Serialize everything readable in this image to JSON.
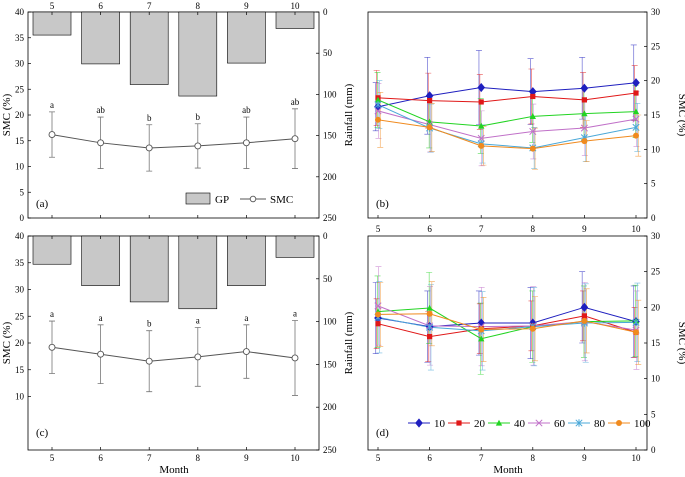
{
  "figure": {
    "xlabel": "Month",
    "left_ylabel": "SMC (%)",
    "mid_ylabel": "Rainfall (mm)",
    "right_ylabel": "SMC (%)"
  },
  "chart_data": [
    {
      "panel": "(a)",
      "type": "bar+line",
      "months": [
        "5",
        "6",
        "7",
        "8",
        "9",
        "10"
      ],
      "bars": {
        "name": "GP",
        "values": [
          28,
          63,
          88,
          102,
          62,
          20
        ],
        "axis": "Rainfall (mm)",
        "ylim_inverted": [
          0,
          250
        ],
        "yticks": [
          0,
          50,
          100,
          150,
          200,
          250
        ],
        "color": "#c8c8c8"
      },
      "line": {
        "name": "SMC",
        "values": [
          16.2,
          14.6,
          13.6,
          14.0,
          14.6,
          15.4
        ],
        "err": [
          4.4,
          5.0,
          4.5,
          4.3,
          5.0,
          5.8
        ],
        "letters": [
          "a",
          "ab",
          "b",
          "b",
          "ab",
          "ab"
        ],
        "axis": "SMC (%)",
        "ylim": [
          0,
          40
        ],
        "yticks": [
          0,
          5,
          10,
          15,
          20,
          25,
          30,
          35,
          40
        ]
      },
      "legend": [
        "GP",
        "SMC"
      ]
    },
    {
      "panel": "(c)",
      "type": "bar+line",
      "months": [
        "5",
        "6",
        "7",
        "8",
        "9",
        "10"
      ],
      "bars": {
        "name": "GP",
        "values": [
          33,
          58,
          77,
          85,
          58,
          25
        ],
        "axis": "Rainfall (mm)",
        "ylim_inverted": [
          0,
          250
        ],
        "yticks": [
          0,
          50,
          100,
          150,
          200,
          250
        ],
        "color": "#c8c8c8"
      },
      "line": {
        "name": "SMC",
        "values": [
          19.2,
          17.9,
          16.6,
          17.4,
          18.4,
          17.2
        ],
        "err": [
          4.9,
          5.5,
          5.7,
          5.5,
          5.0,
          7.0
        ],
        "letters": [
          "a",
          "a",
          "b",
          "a",
          "a",
          "a"
        ],
        "axis": "SMC (%)",
        "ylim": [
          0,
          40
        ],
        "yticks": [
          10,
          15,
          20,
          25,
          30,
          35,
          40
        ]
      }
    },
    {
      "panel": "(b)",
      "type": "line",
      "months": [
        "5",
        "6",
        "7",
        "8",
        "9",
        "10"
      ],
      "ylabel": "SMC (%)",
      "ylim": [
        0,
        30
      ],
      "yticks": [
        0,
        5,
        10,
        15,
        20,
        25,
        30
      ],
      "series": [
        {
          "name": "10",
          "color": "#1f1fbf",
          "marker": "diamond",
          "values": [
            16.2,
            17.8,
            19.0,
            18.4,
            18.9,
            19.7
          ],
          "err": [
            3.5,
            5.6,
            5.4,
            4.8,
            4.5,
            5.5
          ]
        },
        {
          "name": "20",
          "color": "#e01818",
          "marker": "square",
          "values": [
            17.5,
            17.1,
            16.9,
            17.7,
            17.2,
            18.2
          ],
          "err": [
            4.0,
            4.0,
            4.0,
            4.0,
            4.0,
            4.0
          ]
        },
        {
          "name": "40",
          "color": "#22d422",
          "marker": "triangle",
          "values": [
            17.2,
            14.0,
            13.4,
            14.8,
            15.2,
            15.5
          ],
          "err": [
            4.0,
            3.8,
            4.0,
            3.8,
            3.8,
            3.8
          ]
        },
        {
          "name": "60",
          "color": "#c070c8",
          "marker": "x",
          "values": [
            15.6,
            13.6,
            11.6,
            12.6,
            13.1,
            14.4
          ],
          "err": [
            4.0,
            4.0,
            4.0,
            4.0,
            4.0,
            4.0
          ]
        },
        {
          "name": "80",
          "color": "#4aa8d8",
          "marker": "star",
          "values": [
            16.5,
            13.1,
            10.8,
            10.2,
            11.7,
            13.2
          ],
          "err": [
            3.5,
            3.5,
            2.8,
            3.0,
            3.5,
            3.5
          ]
        },
        {
          "name": "100",
          "color": "#f08a1e",
          "marker": "circle",
          "values": [
            14.3,
            13.2,
            10.5,
            10.1,
            11.2,
            12.0
          ],
          "err": [
            4.0,
            3.5,
            2.8,
            3.0,
            3.0,
            3.0
          ]
        }
      ]
    },
    {
      "panel": "(d)",
      "type": "line",
      "months": [
        "5",
        "6",
        "7",
        "8",
        "9",
        "10"
      ],
      "ylabel": "SMC (%)",
      "ylim": [
        0,
        30
      ],
      "yticks": [
        0,
        5,
        10,
        15,
        20,
        25,
        30
      ],
      "legend": [
        "10",
        "20",
        "40",
        "60",
        "80",
        "100"
      ],
      "series": [
        {
          "name": "10",
          "color": "#1f1fbf",
          "marker": "diamond",
          "values": [
            18.5,
            17.3,
            17.8,
            17.8,
            20.0,
            18.0
          ],
          "err": [
            5.0,
            5.0,
            4.5,
            5.0,
            5.0,
            5.0
          ]
        },
        {
          "name": "20",
          "color": "#e01818",
          "marker": "square",
          "values": [
            17.7,
            15.9,
            17.0,
            17.4,
            18.8,
            16.5
          ],
          "err": [
            3.5,
            3.5,
            3.5,
            3.5,
            3.5,
            3.5
          ]
        },
        {
          "name": "40",
          "color": "#22d422",
          "marker": "triangle",
          "values": [
            19.4,
            19.9,
            15.6,
            17.3,
            18.0,
            18.1
          ],
          "err": [
            5.0,
            5.0,
            5.0,
            5.0,
            5.0,
            5.0
          ]
        },
        {
          "name": "60",
          "color": "#c070c8",
          "marker": "x",
          "values": [
            20.2,
            17.4,
            17.3,
            17.4,
            18.0,
            16.8
          ],
          "err": [
            5.5,
            5.5,
            5.5,
            5.5,
            5.5,
            5.5
          ]
        },
        {
          "name": "80",
          "color": "#4aa8d8",
          "marker": "star",
          "values": [
            18.6,
            17.2,
            16.7,
            17.3,
            17.8,
            17.9
          ],
          "err": [
            5.0,
            6.0,
            5.5,
            5.5,
            5.5,
            5.5
          ]
        },
        {
          "name": "100",
          "color": "#f08a1e",
          "marker": "circle",
          "values": [
            19.0,
            19.1,
            16.9,
            17.0,
            18.1,
            16.5
          ],
          "err": [
            4.5,
            4.5,
            4.5,
            4.5,
            4.5,
            4.5
          ]
        }
      ]
    }
  ]
}
